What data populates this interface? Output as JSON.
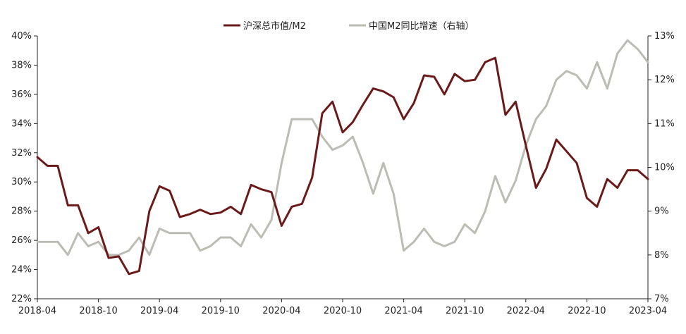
{
  "chart_data": {
    "type": "line",
    "title": "",
    "xlabel": "",
    "ylabel": "",
    "legend_position": "top-center",
    "grid": false,
    "colors": {
      "market_cap_m2": "#6b1a1a",
      "m2_yoy": "#bcbcb4",
      "axis": "#222222"
    },
    "x_tick_labels": [
      "2018-04",
      "2018-10",
      "2019-04",
      "2019-10",
      "2020-04",
      "2020-10",
      "2021-04",
      "2021-10",
      "2022-04",
      "2022-10",
      "2023-04"
    ],
    "y_left": {
      "range": [
        22,
        40
      ],
      "ticks": [
        22,
        24,
        26,
        28,
        30,
        32,
        34,
        36,
        38,
        40
      ],
      "tick_labels": [
        "22%",
        "24%",
        "26%",
        "28%",
        "30%",
        "32%",
        "34%",
        "36%",
        "38%",
        "40%"
      ]
    },
    "y_right": {
      "range": [
        7,
        13
      ],
      "ticks": [
        7,
        8,
        9,
        10,
        11,
        12,
        13
      ],
      "tick_labels": [
        "7%",
        "8%",
        "9%",
        "10%",
        "11%",
        "12%",
        "13%"
      ]
    },
    "x": [
      "2018-04",
      "2018-05",
      "2018-06",
      "2018-07",
      "2018-08",
      "2018-09",
      "2018-10",
      "2018-11",
      "2018-12",
      "2019-01",
      "2019-02",
      "2019-03",
      "2019-04",
      "2019-05",
      "2019-06",
      "2019-07",
      "2019-08",
      "2019-09",
      "2019-10",
      "2019-11",
      "2019-12",
      "2020-01",
      "2020-02",
      "2020-03",
      "2020-04",
      "2020-05",
      "2020-06",
      "2020-07",
      "2020-08",
      "2020-09",
      "2020-10",
      "2020-11",
      "2020-12",
      "2021-01",
      "2021-02",
      "2021-03",
      "2021-04",
      "2021-05",
      "2021-06",
      "2021-07",
      "2021-08",
      "2021-09",
      "2021-10",
      "2021-11",
      "2021-12",
      "2022-01",
      "2022-02",
      "2022-03",
      "2022-04",
      "2022-05",
      "2022-06",
      "2022-07",
      "2022-08",
      "2022-09",
      "2022-10",
      "2022-11",
      "2022-12",
      "2023-01",
      "2023-02",
      "2023-03",
      "2023-04"
    ],
    "series": [
      {
        "name": "沪深总市值/M2",
        "axis": "left",
        "values": [
          31.7,
          31.1,
          31.1,
          28.4,
          28.4,
          26.5,
          26.9,
          24.8,
          24.9,
          23.7,
          23.9,
          28.0,
          29.7,
          29.4,
          27.6,
          27.8,
          28.1,
          27.8,
          27.9,
          28.3,
          27.8,
          29.8,
          29.5,
          29.3,
          27.0,
          28.3,
          28.5,
          30.3,
          34.7,
          35.5,
          33.4,
          34.1,
          35.3,
          36.4,
          36.2,
          35.8,
          34.3,
          35.4,
          37.3,
          37.2,
          36.0,
          37.4,
          36.9,
          37.0,
          38.2,
          38.5,
          34.6,
          35.5,
          32.5,
          29.6,
          30.9,
          32.9,
          32.1,
          31.3,
          28.9,
          28.3,
          30.2,
          29.6,
          30.8,
          30.8,
          30.2
        ]
      },
      {
        "name": "中国M2同比增速（右轴）",
        "axis": "right",
        "values": [
          8.3,
          8.3,
          8.3,
          8.0,
          8.5,
          8.2,
          8.3,
          8.0,
          8.0,
          8.1,
          8.4,
          8.0,
          8.6,
          8.5,
          8.5,
          8.5,
          8.1,
          8.2,
          8.4,
          8.4,
          8.2,
          8.7,
          8.4,
          8.8,
          10.1,
          11.1,
          11.1,
          11.1,
          10.7,
          10.4,
          10.5,
          10.7,
          10.1,
          9.4,
          10.1,
          9.4,
          8.1,
          8.3,
          8.6,
          8.3,
          8.2,
          8.3,
          8.7,
          8.5,
          9.0,
          9.8,
          9.2,
          9.7,
          10.5,
          11.1,
          11.4,
          12.0,
          12.2,
          12.1,
          11.8,
          12.4,
          11.8,
          12.6,
          12.9,
          12.7,
          12.4
        ]
      }
    ]
  }
}
